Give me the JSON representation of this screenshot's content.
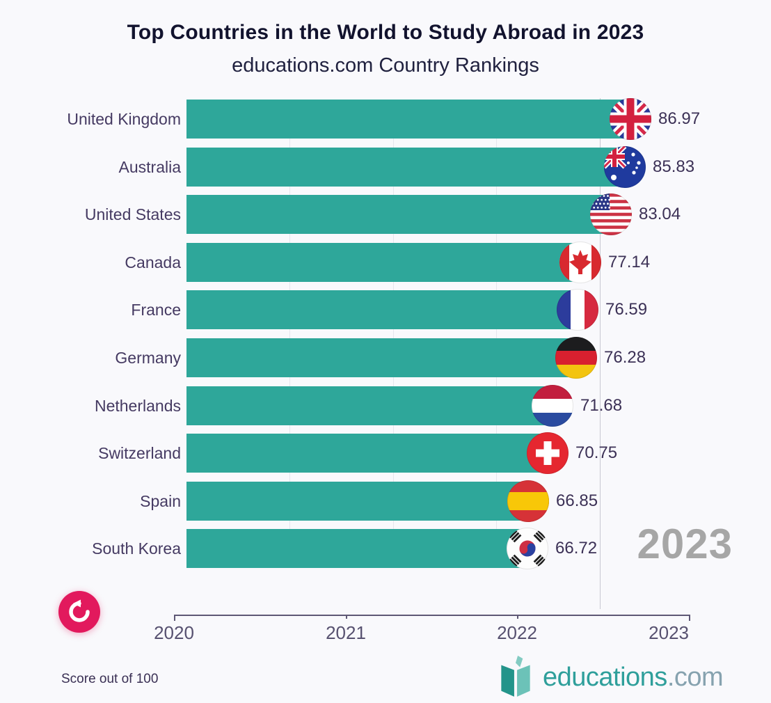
{
  "header": {
    "title": "Top Countries in the World to Study Abroad in 2023",
    "subtitle": "educations.com Country Rankings"
  },
  "chart_data": {
    "type": "bar",
    "orientation": "horizontal",
    "title": "Top Countries in the World to Study Abroad in 2023",
    "subtitle": "educations.com Country Rankings",
    "categories": [
      "United Kingdom",
      "Australia",
      "United States",
      "Canada",
      "France",
      "Germany",
      "Netherlands",
      "Switzerland",
      "Spain",
      "South Korea"
    ],
    "values": [
      86.97,
      85.83,
      83.04,
      77.14,
      76.59,
      76.28,
      71.68,
      70.75,
      66.85,
      66.72
    ],
    "flags": [
      "united-kingdom",
      "australia",
      "united-states",
      "canada",
      "france",
      "germany",
      "netherlands",
      "switzerland",
      "spain",
      "south-korea"
    ],
    "value_axis": {
      "min": 0,
      "max": 100,
      "gridlines": [
        20,
        40,
        60
      ],
      "note": "Score out of 100"
    },
    "timeline": {
      "ticks": [
        "2020",
        "2021",
        "2022",
        "2023"
      ],
      "current_year": "2023",
      "cursor_value": 80
    },
    "bar_color": "#2ea79a",
    "legend": "none"
  },
  "footer": {
    "note": "Score out of 100"
  },
  "controls": {
    "replay_icon": "replay-arrow-icon"
  },
  "branding": {
    "logo_icon": "open-book-icon",
    "logo_name": "educations",
    "logo_suffix": ".com"
  },
  "colors": {
    "bar": "#2ea79a",
    "background": "#f9f9fc",
    "replay_button": "#e2195d",
    "big_year_gray": "#a6a6a6",
    "brand_teal": "#2f9f9b",
    "label_purple": "#453a62"
  }
}
